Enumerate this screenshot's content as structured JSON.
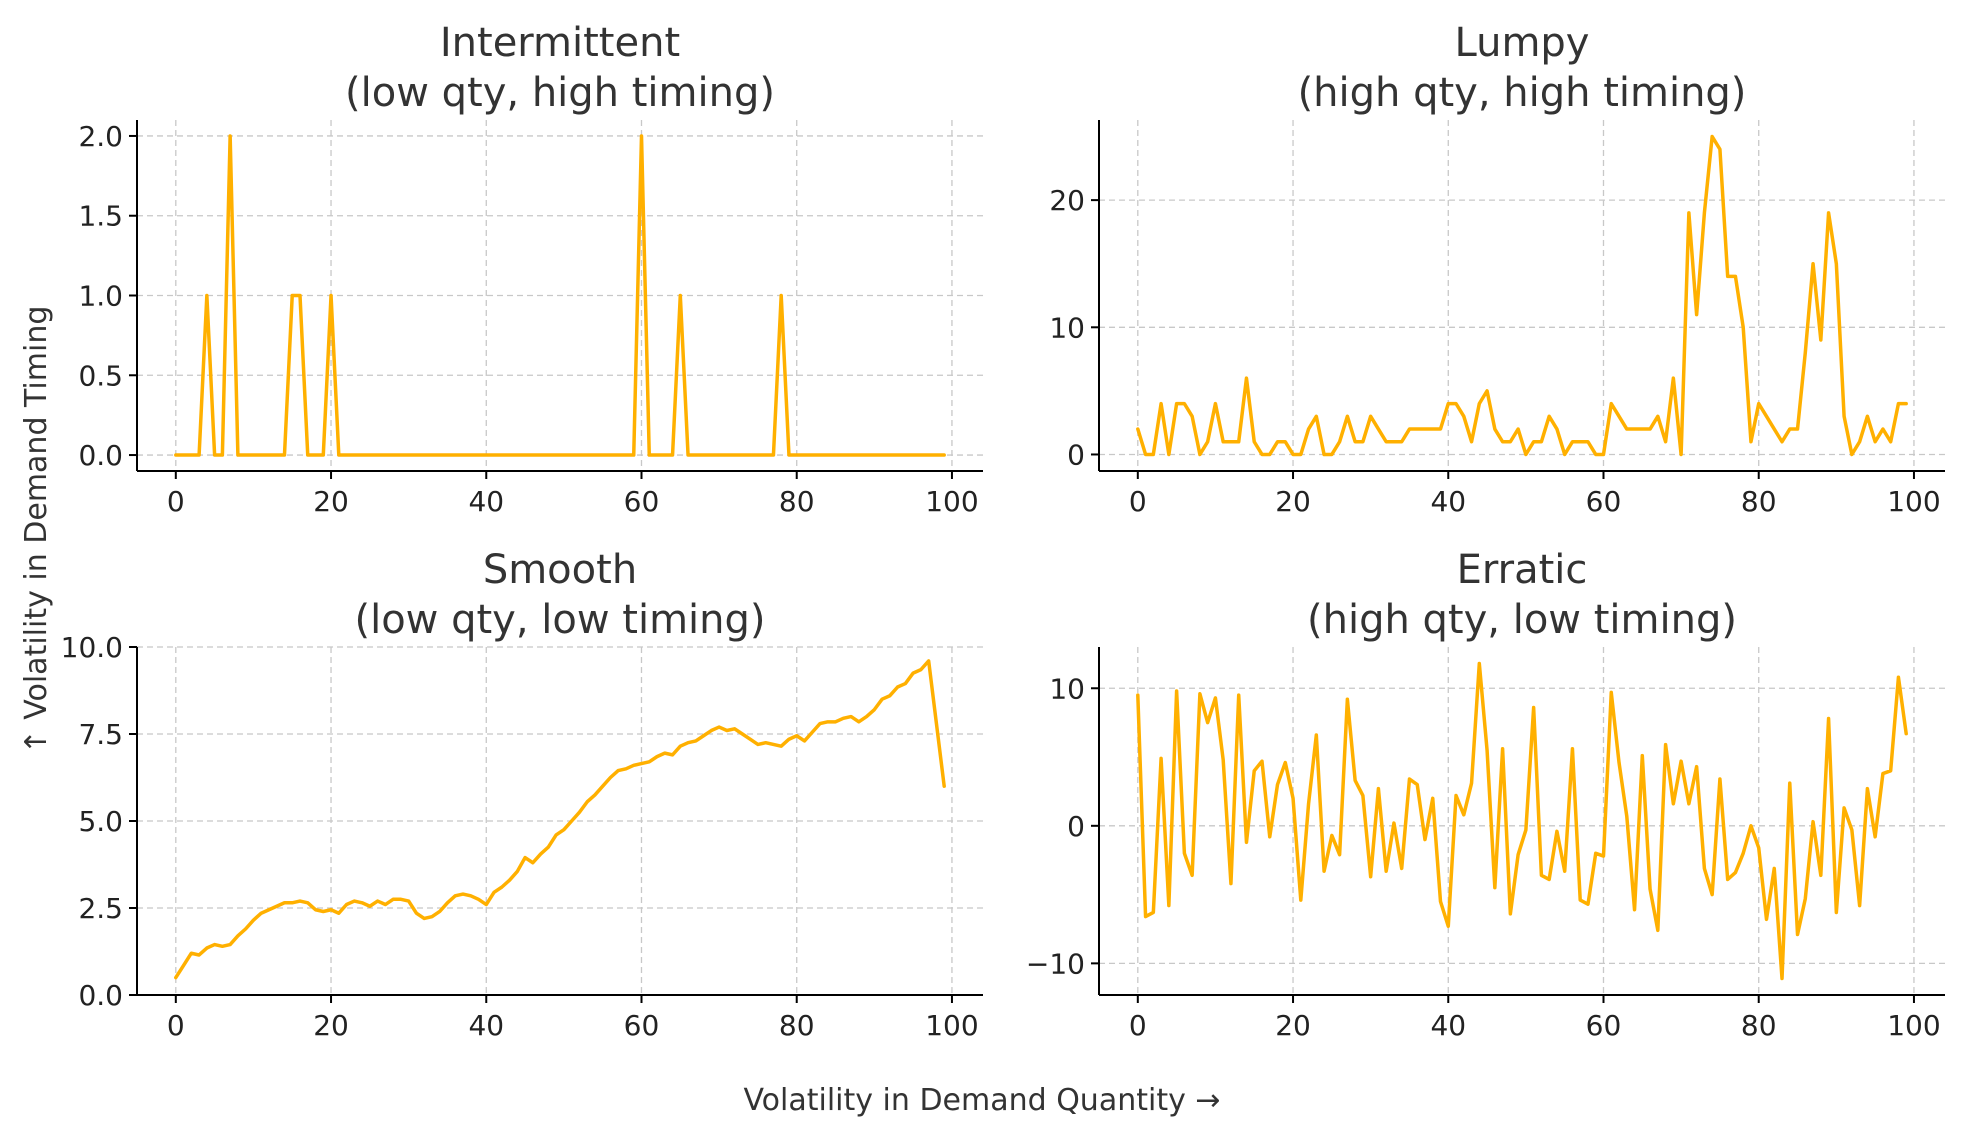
{
  "figure": {
    "xlabel": "Volatility in Demand Quantity →",
    "ylabel": "↑ Volatility in Demand Timing",
    "line_color": "#FFB000",
    "grid": true
  },
  "chart_data": [
    {
      "type": "line",
      "title_lines": [
        "Intermittent",
        "(low qty, high timing)"
      ],
      "xlim": [
        -5,
        104
      ],
      "ylim": [
        -0.1,
        2.1
      ],
      "xticks": [
        0,
        20,
        40,
        60,
        80,
        100
      ],
      "xtick_labels": [
        "0",
        "20",
        "40",
        "60",
        "80",
        "100"
      ],
      "yticks": [
        0,
        0.5,
        1,
        1.5,
        2
      ],
      "ytick_labels": [
        "0.0",
        "0.5",
        "1.0",
        "1.5",
        "2.0"
      ],
      "x_start": 0,
      "values": [
        0,
        0,
        0,
        0,
        1,
        0,
        0,
        2,
        0,
        0,
        0,
        0,
        0,
        0,
        0,
        1,
        1,
        0,
        0,
        0,
        1,
        0,
        0,
        0,
        0,
        0,
        0,
        0,
        0,
        0,
        0,
        0,
        0,
        0,
        0,
        0,
        0,
        0,
        0,
        0,
        0,
        0,
        0,
        0,
        0,
        0,
        0,
        0,
        0,
        0,
        0,
        0,
        0,
        0,
        0,
        0,
        0,
        0,
        0,
        0,
        2,
        0,
        0,
        0,
        0,
        1,
        0,
        0,
        0,
        0,
        0,
        0,
        0,
        0,
        0,
        0,
        0,
        0,
        1,
        0,
        0,
        0,
        0,
        0,
        0,
        0,
        0,
        0,
        0,
        0,
        0,
        0,
        0,
        0,
        0,
        0,
        0,
        0,
        0,
        0
      ]
    },
    {
      "type": "line",
      "title_lines": [
        "Lumpy",
        "(high qty, high timing)"
      ],
      "xlim": [
        -5,
        104
      ],
      "ylim": [
        -1.3,
        26.3
      ],
      "xticks": [
        0,
        20,
        40,
        60,
        80,
        100
      ],
      "xtick_labels": [
        "0",
        "20",
        "40",
        "60",
        "80",
        "100"
      ],
      "yticks": [
        0,
        10,
        20
      ],
      "ytick_labels": [
        "0",
        "10",
        "20"
      ],
      "x_start": 0,
      "values": [
        2,
        0,
        0,
        4,
        0,
        4,
        4,
        3,
        0,
        1,
        4,
        1,
        1,
        1,
        6,
        1,
        0,
        0,
        1,
        1,
        0,
        0,
        2,
        3,
        0,
        0,
        1,
        3,
        1,
        1,
        3,
        2,
        1,
        1,
        1,
        2,
        2,
        2,
        2,
        2,
        4,
        4,
        3,
        1,
        4,
        5,
        2,
        1,
        1,
        2,
        0,
        1,
        1,
        3,
        2,
        0,
        1,
        1,
        1,
        0,
        0,
        4,
        3,
        2,
        2,
        2,
        2,
        3,
        1,
        6,
        0,
        19,
        11,
        19,
        25,
        24,
        14,
        14,
        10,
        1,
        4,
        3,
        2,
        1,
        2,
        2,
        8,
        15,
        9,
        19,
        15,
        3,
        0,
        1,
        3,
        1,
        2,
        1,
        4,
        4
      ]
    },
    {
      "type": "line",
      "title_lines": [
        "Smooth",
        "(low qty, low timing)"
      ],
      "xlim": [
        -5,
        104
      ],
      "ylim": [
        0,
        10
      ],
      "xticks": [
        0,
        20,
        40,
        60,
        80,
        100
      ],
      "xtick_labels": [
        "0",
        "20",
        "40",
        "60",
        "80",
        "100"
      ],
      "yticks": [
        0,
        2.5,
        5,
        7.5,
        10
      ],
      "ytick_labels": [
        "0.0",
        "2.5",
        "5.0",
        "7.5",
        "10.0"
      ],
      "x_start": 0,
      "values": [
        0.5,
        0.85,
        1.2,
        1.15,
        1.35,
        1.45,
        1.4,
        1.45,
        1.7,
        1.9,
        2.15,
        2.35,
        2.45,
        2.55,
        2.65,
        2.65,
        2.7,
        2.65,
        2.45,
        2.4,
        2.45,
        2.35,
        2.6,
        2.7,
        2.65,
        2.55,
        2.7,
        2.6,
        2.75,
        2.75,
        2.7,
        2.35,
        2.2,
        2.25,
        2.4,
        2.65,
        2.85,
        2.9,
        2.85,
        2.75,
        2.6,
        2.95,
        3.1,
        3.3,
        3.55,
        3.95,
        3.8,
        4.05,
        4.25,
        4.6,
        4.75,
        5.0,
        5.25,
        5.55,
        5.75,
        6.0,
        6.25,
        6.45,
        6.5,
        6.6,
        6.65,
        6.7,
        6.85,
        6.95,
        6.9,
        7.15,
        7.25,
        7.3,
        7.45,
        7.6,
        7.7,
        7.6,
        7.65,
        7.5,
        7.35,
        7.2,
        7.25,
        7.2,
        7.15,
        7.35,
        7.45,
        7.3,
        7.55,
        7.8,
        7.85,
        7.85,
        7.95,
        8.0,
        7.85,
        8.0,
        8.2,
        8.5,
        8.6,
        8.85,
        8.95,
        9.25,
        9.35,
        9.6,
        7.8,
        6.0
      ]
    },
    {
      "type": "line",
      "title_lines": [
        "Erratic",
        "(high qty, low timing)"
      ],
      "xlim": [
        -5,
        104
      ],
      "ylim": [
        -12.3,
        13
      ],
      "xticks": [
        0,
        20,
        40,
        60,
        80,
        100
      ],
      "xtick_labels": [
        "0",
        "20",
        "40",
        "60",
        "80",
        "100"
      ],
      "yticks": [
        -10,
        0,
        10
      ],
      "ytick_labels": [
        "−10",
        "0",
        "10"
      ],
      "x_start": 0,
      "values": [
        9.5,
        -6.6,
        -6.3,
        4.9,
        -5.8,
        9.8,
        -2.0,
        -3.6,
        9.6,
        7.5,
        9.3,
        4.8,
        -4.2,
        9.5,
        -1.2,
        4.0,
        4.7,
        -0.8,
        3.0,
        4.6,
        2.0,
        -5.4,
        1.6,
        6.6,
        -3.3,
        -0.7,
        -2.1,
        9.2,
        3.3,
        2.2,
        -3.7,
        2.7,
        -3.3,
        0.2,
        -3.1,
        3.4,
        3.0,
        -1.0,
        2.0,
        -5.5,
        -7.3,
        2.2,
        0.8,
        3.1,
        11.8,
        5.5,
        -4.5,
        5.6,
        -6.4,
        -2.1,
        -0.3,
        8.6,
        -3.6,
        -3.9,
        -0.4,
        -3.3,
        5.6,
        -5.4,
        -5.7,
        -2.0,
        -2.2,
        9.7,
        4.6,
        0.7,
        -6.1,
        5.1,
        -4.6,
        -7.6,
        5.9,
        1.6,
        4.7,
        1.6,
        4.3,
        -3.1,
        -5.0,
        3.4,
        -3.9,
        -3.4,
        -2.0,
        0.0,
        -1.6,
        -6.8,
        -3.1,
        -11.1,
        3.1,
        -7.9,
        -5.3,
        0.3,
        -3.6,
        7.8,
        -6.3,
        1.3,
        -0.3,
        -5.8,
        2.7,
        -0.8,
        3.8,
        4.0,
        10.8,
        6.7
      ]
    }
  ]
}
